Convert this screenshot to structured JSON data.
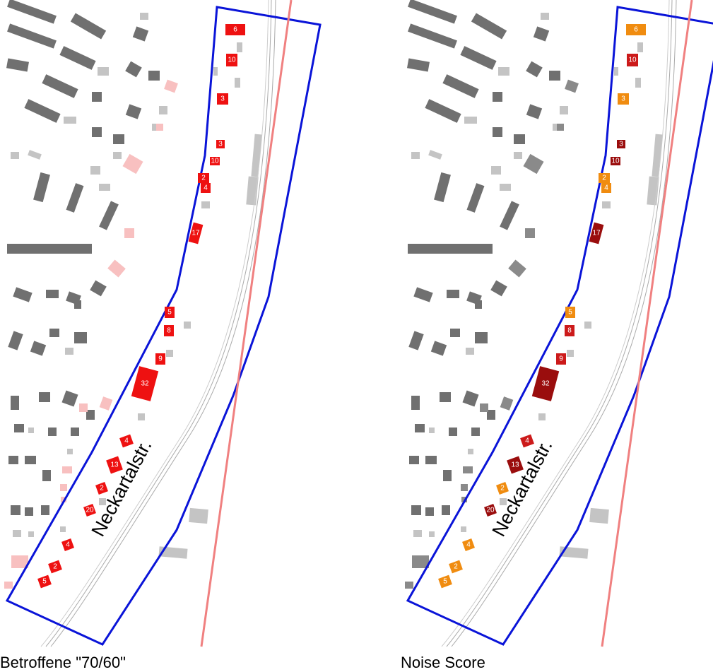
{
  "panels": [
    {
      "caption": "Betroffene \"70/60\"",
      "street": "Neckartalstr.",
      "buildings": [
        {
          "label": "6",
          "color": "#ee1111"
        },
        {
          "label": "10",
          "color": "#ee1111"
        },
        {
          "label": "3",
          "color": "#ee1111"
        },
        {
          "label": "3",
          "color": "#ee1111"
        },
        {
          "label": "10",
          "color": "#ee1111"
        },
        {
          "label": "2",
          "color": "#ee1111"
        },
        {
          "label": "4",
          "color": "#ee1111"
        },
        {
          "label": "17",
          "color": "#ee1111"
        },
        {
          "label": "5",
          "color": "#ee1111"
        },
        {
          "label": "8",
          "color": "#ee1111"
        },
        {
          "label": "9",
          "color": "#ee1111"
        },
        {
          "label": "32",
          "color": "#ee1111"
        },
        {
          "label": "4",
          "color": "#ee1111"
        },
        {
          "label": "13",
          "color": "#ee1111"
        },
        {
          "label": "2",
          "color": "#ee1111"
        },
        {
          "label": "20",
          "color": "#ee1111"
        },
        {
          "label": "4",
          "color": "#ee1111"
        },
        {
          "label": "2",
          "color": "#ee1111"
        },
        {
          "label": "5",
          "color": "#ee1111"
        }
      ]
    },
    {
      "caption": "Noise Score",
      "street": "Neckartalstr.",
      "buildings": [
        {
          "label": "6",
          "color": "#f08c10"
        },
        {
          "label": "10",
          "color": "#cc1a1a"
        },
        {
          "label": "3",
          "color": "#f08c10"
        },
        {
          "label": "3",
          "color": "#9a0d0d"
        },
        {
          "label": "10",
          "color": "#9a0d0d"
        },
        {
          "label": "2",
          "color": "#f08c10"
        },
        {
          "label": "4",
          "color": "#f08c10"
        },
        {
          "label": "17",
          "color": "#9a0d0d"
        },
        {
          "label": "5",
          "color": "#f08c10"
        },
        {
          "label": "8",
          "color": "#cc1a1a"
        },
        {
          "label": "9",
          "color": "#cc1a1a"
        },
        {
          "label": "32",
          "color": "#9a0d0d"
        },
        {
          "label": "4",
          "color": "#cc1a1a"
        },
        {
          "label": "13",
          "color": "#9a0d0d"
        },
        {
          "label": "2",
          "color": "#f08c10"
        },
        {
          "label": "20",
          "color": "#9a0d0d"
        },
        {
          "label": "4",
          "color": "#f08c10"
        },
        {
          "label": "2",
          "color": "#f08c10"
        },
        {
          "label": "5",
          "color": "#f08c10"
        }
      ]
    }
  ]
}
